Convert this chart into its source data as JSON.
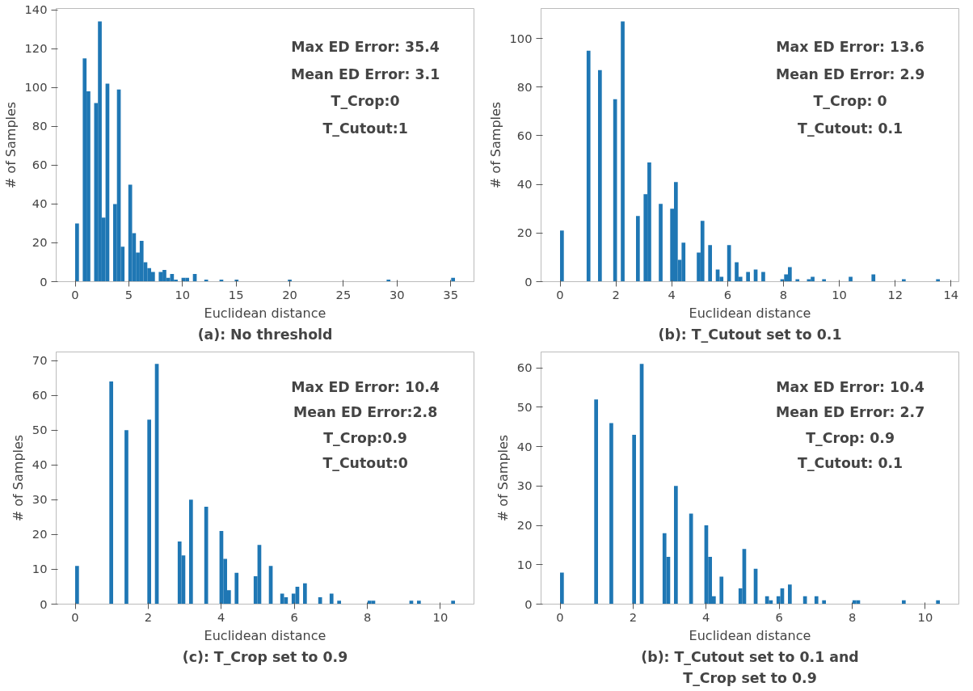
{
  "chart_data": [
    {
      "type": "histogram",
      "title": "(a): No threshold",
      "xlabel": "Euclidean distance",
      "ylabel": "# of Samples",
      "color": "#1f77b4",
      "bins": [
        0,
        0.354,
        0.708,
        1.062,
        1.416,
        1.77,
        2.124,
        2.478,
        2.832,
        3.186,
        3.54,
        3.894,
        4.248,
        4.602,
        4.956,
        5.31,
        5.664,
        6.018,
        6.372,
        6.726,
        7.08,
        7.434,
        7.788,
        8.142,
        8.496,
        8.85,
        9.204,
        9.558,
        9.912,
        10.266,
        10.62,
        10.974,
        11.328,
        12.036,
        12.39,
        13.452,
        13.806,
        14.868,
        15.222,
        19.824,
        20.178,
        29.028,
        29.382,
        35.046,
        35.4
      ],
      "values": [
        30,
        0,
        115,
        98,
        0,
        92,
        134,
        33,
        102,
        0,
        40,
        99,
        18,
        0,
        50,
        25,
        15,
        21,
        10,
        7,
        5,
        0,
        5,
        6,
        2,
        4,
        1,
        0,
        2,
        2,
        0,
        4,
        0,
        1,
        0,
        1,
        0,
        1,
        0,
        1,
        0,
        1,
        0,
        2
      ],
      "xlim": [
        -1.77,
        37.17
      ],
      "ylim": [
        0,
        140.7
      ],
      "xticks": [
        0,
        5,
        10,
        15,
        20,
        25,
        30,
        35
      ],
      "yticks": [
        0,
        20,
        40,
        60,
        80,
        100,
        120,
        140
      ],
      "annotations": [
        "Max ED Error: 35.4",
        "Mean ED Error: 3.1",
        "T_Crop:0",
        "T_Cutout:1"
      ]
    },
    {
      "type": "histogram",
      "title": "(b): T_Cutout set to 0.1",
      "xlabel": "Euclidean distance",
      "ylabel": "# of Samples",
      "color": "#1f77b4",
      "bins": [
        0,
        0.136,
        0.952,
        1.088,
        1.36,
        1.496,
        1.904,
        2.04,
        2.176,
        2.312,
        2.72,
        2.856,
        2.992,
        3.128,
        3.264,
        3.536,
        3.672,
        3.944,
        4.08,
        4.216,
        4.352,
        4.488,
        4.896,
        5.032,
        5.168,
        5.304,
        5.44,
        5.576,
        5.712,
        5.848,
        5.984,
        6.12,
        6.256,
        6.392,
        6.528,
        6.664,
        6.8,
        6.936,
        7.072,
        7.208,
        7.344,
        7.888,
        8.024,
        8.16,
        8.296,
        8.432,
        8.568,
        8.84,
        8.976,
        9.112,
        9.384,
        9.52,
        10.336,
        10.472,
        11.152,
        11.288,
        12.24,
        12.376,
        13.464,
        13.6
      ],
      "values": [
        21,
        0,
        95,
        0,
        87,
        0,
        75,
        0,
        107,
        0,
        27,
        0,
        36,
        49,
        0,
        32,
        0,
        30,
        41,
        9,
        16,
        0,
        12,
        25,
        0,
        15,
        0,
        5,
        2,
        0,
        15,
        0,
        8,
        2,
        0,
        4,
        0,
        5,
        0,
        4,
        0,
        1,
        3,
        6,
        0,
        1,
        0,
        1,
        2,
        0,
        1,
        0,
        2,
        0,
        3,
        0,
        1,
        0,
        1
      ],
      "xlim": [
        -0.68,
        14.28
      ],
      "ylim": [
        0,
        112.35
      ],
      "xticks": [
        0,
        2,
        4,
        6,
        8,
        10,
        12,
        14
      ],
      "yticks": [
        0,
        20,
        40,
        60,
        80,
        100
      ],
      "annotations": [
        "Max ED Error: 13.6",
        "Mean ED Error: 2.9",
        "T_Crop: 0",
        "T_Cutout: 0.1"
      ]
    },
    {
      "type": "histogram",
      "title": "(c): T_Crop set to 0.9",
      "xlabel": "Euclidean distance",
      "ylabel": "# of Samples",
      "color": "#1f77b4",
      "bins": [
        0,
        0.104,
        0.936,
        1.04,
        1.352,
        1.456,
        1.976,
        2.08,
        2.184,
        2.288,
        2.808,
        2.912,
        3.016,
        3.12,
        3.224,
        3.536,
        3.64,
        3.952,
        4.056,
        4.16,
        4.264,
        4.368,
        4.472,
        4.888,
        4.992,
        5.096,
        5.304,
        5.408,
        5.616,
        5.72,
        5.824,
        5.928,
        6.032,
        6.136,
        6.24,
        6.344,
        6.656,
        6.76,
        6.968,
        7.072,
        7.176,
        7.28,
        8.008,
        8.112,
        8.216,
        9.152,
        9.256,
        9.36,
        9.464,
        10.296,
        10.4
      ],
      "values": [
        11,
        0,
        64,
        0,
        50,
        0,
        53,
        0,
        69,
        0,
        18,
        14,
        0,
        30,
        0,
        28,
        0,
        21,
        13,
        4,
        0,
        9,
        0,
        8,
        17,
        0,
        11,
        0,
        3,
        2,
        0,
        3,
        5,
        0,
        6,
        0,
        2,
        0,
        3,
        0,
        1,
        0,
        1,
        1,
        0,
        1,
        0,
        1,
        0,
        1
      ],
      "xlim": [
        -0.52,
        10.92
      ],
      "ylim": [
        0,
        72.45
      ],
      "xticks": [
        0,
        2,
        4,
        6,
        8,
        10
      ],
      "yticks": [
        0,
        10,
        20,
        30,
        40,
        50,
        60,
        70
      ],
      "annotations": [
        "Max ED Error: 10.4",
        "Mean ED Error:2.8",
        "T_Crop:0.9",
        "T_Cutout:0"
      ]
    },
    {
      "type": "histogram",
      "title": "(b): T_Cutout set to 0.1 and\nT_Crop set to 0.9",
      "xlabel": "Euclidean distance",
      "ylabel": "# of Samples",
      "color": "#1f77b4",
      "bins": [
        0,
        0.104,
        0.936,
        1.04,
        1.352,
        1.456,
        1.976,
        2.08,
        2.184,
        2.288,
        2.808,
        2.912,
        3.016,
        3.12,
        3.224,
        3.536,
        3.64,
        3.952,
        4.056,
        4.16,
        4.264,
        4.368,
        4.472,
        4.888,
        4.992,
        5.096,
        5.304,
        5.408,
        5.616,
        5.72,
        5.824,
        5.928,
        6.032,
        6.136,
        6.24,
        6.344,
        6.656,
        6.76,
        6.968,
        7.072,
        7.176,
        7.28,
        8.008,
        8.112,
        8.216,
        9.36,
        9.464,
        10.296,
        10.4
      ],
      "values": [
        8,
        0,
        52,
        0,
        46,
        0,
        43,
        0,
        61,
        0,
        18,
        12,
        0,
        30,
        0,
        23,
        0,
        20,
        12,
        2,
        0,
        7,
        0,
        4,
        14,
        0,
        9,
        0,
        2,
        1,
        0,
        2,
        4,
        0,
        5,
        0,
        2,
        0,
        2,
        0,
        1,
        0,
        1,
        1,
        0,
        1,
        0,
        1
      ],
      "xlim": [
        -0.52,
        10.92
      ],
      "ylim": [
        0,
        64.05
      ],
      "xticks": [
        0,
        2,
        4,
        6,
        8,
        10
      ],
      "yticks": [
        0,
        10,
        20,
        30,
        40,
        50,
        60
      ],
      "annotations": [
        "Max ED Error: 10.4",
        "Mean ED Error: 2.7",
        "T_Crop: 0.9",
        "T_Cutout: 0.1"
      ]
    }
  ]
}
